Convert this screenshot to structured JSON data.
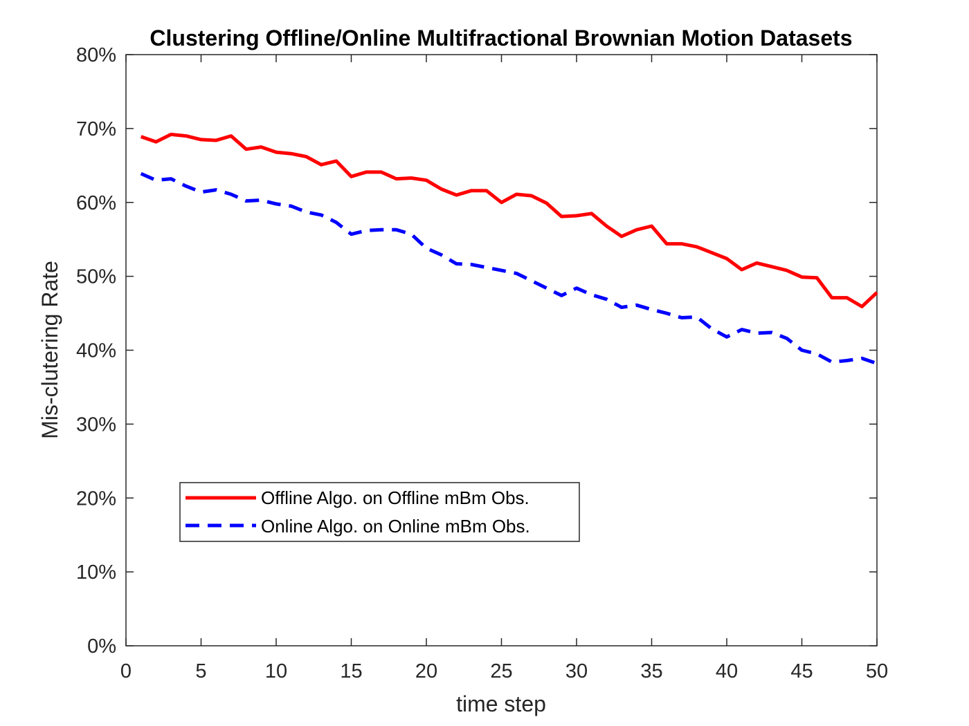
{
  "chart_data": {
    "type": "line",
    "title": "Clustering Offline/Online Multifractional Brownian Motion Datasets",
    "xlabel": "time step",
    "ylabel": "Mis-clutering Rate",
    "xlim": [
      0,
      50
    ],
    "ylim": [
      0,
      0.8
    ],
    "xticks": [
      0,
      5,
      10,
      15,
      20,
      25,
      30,
      35,
      40,
      45,
      50
    ],
    "xtick_labels": [
      "0",
      "5",
      "10",
      "15",
      "20",
      "25",
      "30",
      "35",
      "40",
      "45",
      "50"
    ],
    "yticks": [
      0,
      0.1,
      0.2,
      0.3,
      0.4,
      0.5,
      0.6,
      0.7,
      0.8
    ],
    "ytick_labels": [
      "0%",
      "10%",
      "20%",
      "30%",
      "40%",
      "50%",
      "60%",
      "70%",
      "80%"
    ],
    "grid": false,
    "legend_position": "lower-left",
    "x": [
      1,
      2,
      3,
      4,
      5,
      6,
      7,
      8,
      9,
      10,
      11,
      12,
      13,
      14,
      15,
      16,
      17,
      18,
      19,
      20,
      21,
      22,
      23,
      24,
      25,
      26,
      27,
      28,
      29,
      30,
      31,
      32,
      33,
      34,
      35,
      36,
      37,
      38,
      39,
      40,
      41,
      42,
      43,
      44,
      45,
      46,
      47,
      48,
      49,
      50
    ],
    "series": [
      {
        "name": "Offline Algo. on Offline mBm Obs.",
        "color": "#ff0000",
        "style": "solid",
        "values": [
          0.689,
          0.682,
          0.692,
          0.69,
          0.685,
          0.684,
          0.69,
          0.672,
          0.675,
          0.668,
          0.666,
          0.662,
          0.651,
          0.656,
          0.635,
          0.641,
          0.641,
          0.632,
          0.633,
          0.63,
          0.618,
          0.61,
          0.616,
          0.616,
          0.6,
          0.611,
          0.609,
          0.599,
          0.581,
          0.582,
          0.585,
          0.568,
          0.554,
          0.563,
          0.568,
          0.544,
          0.544,
          0.54,
          0.532,
          0.524,
          0.509,
          0.518,
          0.513,
          0.508,
          0.499,
          0.498,
          0.471,
          0.471,
          0.459,
          0.478
        ]
      },
      {
        "name": "Online Algo. on Online mBm Obs.",
        "color": "#0000ff",
        "style": "dashed",
        "values": [
          0.639,
          0.63,
          0.632,
          0.622,
          0.614,
          0.617,
          0.611,
          0.602,
          0.603,
          0.598,
          0.595,
          0.587,
          0.583,
          0.573,
          0.557,
          0.562,
          0.563,
          0.563,
          0.557,
          0.538,
          0.529,
          0.517,
          0.516,
          0.512,
          0.508,
          0.504,
          0.494,
          0.484,
          0.474,
          0.484,
          0.475,
          0.469,
          0.458,
          0.461,
          0.455,
          0.45,
          0.444,
          0.445,
          0.429,
          0.418,
          0.428,
          0.423,
          0.424,
          0.416,
          0.4,
          0.395,
          0.384,
          0.386,
          0.389,
          0.382
        ]
      }
    ]
  }
}
